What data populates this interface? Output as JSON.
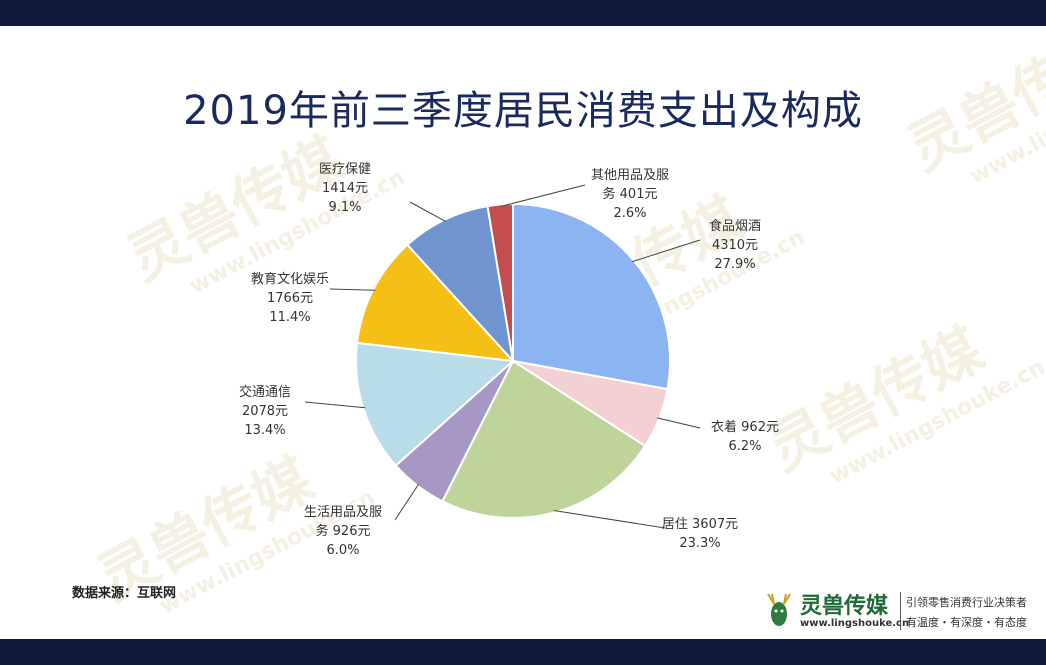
{
  "title": "2019年前三季度居民消费支出及构成",
  "source": "数据来源：互联网",
  "brand": {
    "name": "灵兽传媒",
    "site": "www.lingshouke.cn",
    "slogan1": "引领零售消费行业决策者",
    "slogan2": "有温度・有深度・有态度"
  },
  "watermark": {
    "name": "灵兽传媒",
    "site": "www.lingshouke.cn"
  },
  "chart_data": {
    "type": "pie",
    "title": "2019年前三季度居民消费支出及构成",
    "unit": "元",
    "slices": [
      {
        "name": "食品烟酒",
        "value": 4310,
        "percent": "27.9%",
        "value_label": "4310元",
        "color": "#8cb4f0"
      },
      {
        "name": "衣着",
        "value": 962,
        "percent": "6.2%",
        "value_label": "962元",
        "color": "#f2d0d3"
      },
      {
        "name": "居住",
        "value": 3607,
        "percent": "23.3%",
        "value_label": "3607元",
        "color": "#bfd49b"
      },
      {
        "name": "生活用品及服务",
        "value": 926,
        "percent": "6.0%",
        "value_label": "926元",
        "color": "#a797c4"
      },
      {
        "name": "交通通信",
        "value": 2078,
        "percent": "13.4%",
        "value_label": "2078元",
        "color": "#b9dde8"
      },
      {
        "name": "教育文化娱乐",
        "value": 1766,
        "percent": "11.4%",
        "value_label": "1766元",
        "color": "#f4c016"
      },
      {
        "name": "医疗保健",
        "value": 1414,
        "percent": "9.1%",
        "value_label": "1414元",
        "color": "#6f94cf"
      },
      {
        "name": "其他用品及服务",
        "value": 401,
        "percent": "2.6%",
        "value_label": "401元",
        "color": "#c44d4f"
      }
    ],
    "label_lines": [
      [
        "其他用品及服",
        "务 401元",
        "2.6%"
      ],
      [
        "食品烟酒",
        "4310元",
        "27.9%"
      ],
      [
        "衣着 962元",
        "6.2%"
      ],
      [
        "居住 3607元",
        "23.3%"
      ],
      [
        "生活用品及服",
        "务 926元",
        "6.0%"
      ],
      [
        "交通通信",
        "2078元",
        "13.4%"
      ],
      [
        "教育文化娱乐",
        "1766元",
        "11.4%"
      ],
      [
        "医疗保健",
        "1414元",
        "9.1%"
      ]
    ]
  }
}
